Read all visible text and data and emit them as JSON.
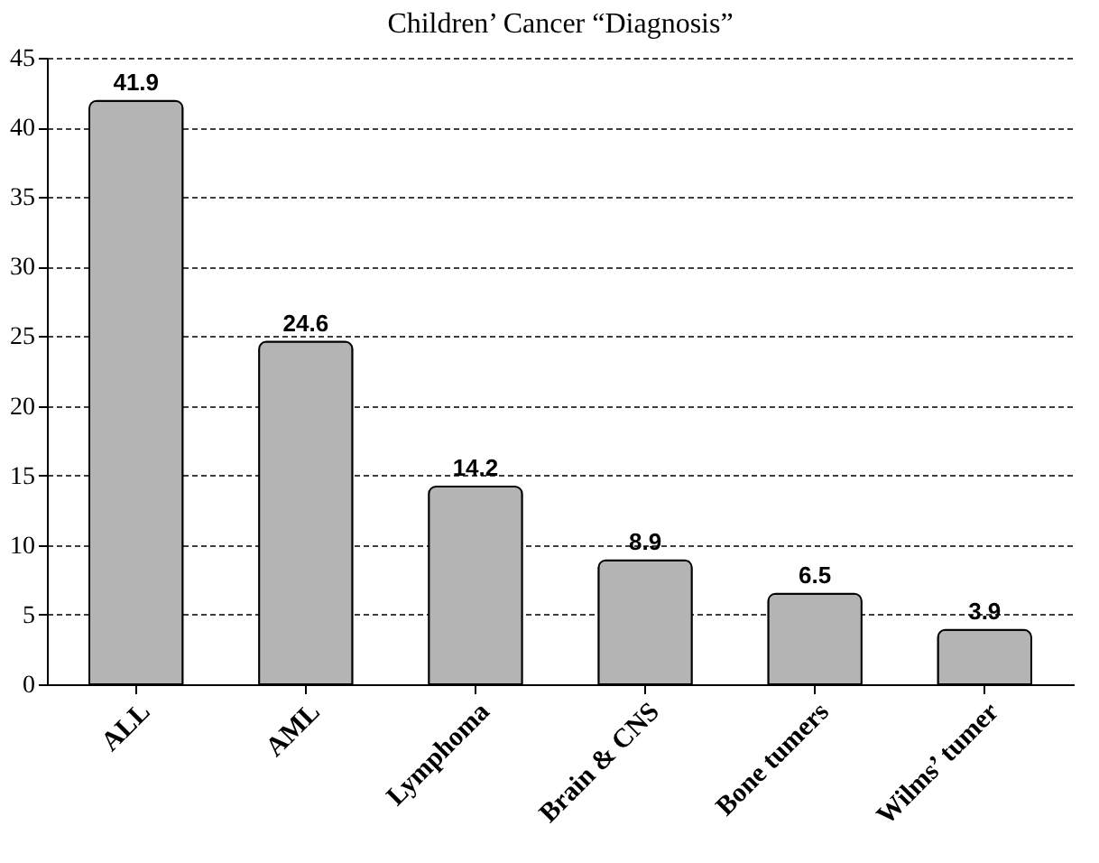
{
  "chart_data": {
    "type": "bar",
    "title": "Children’ Cancer “Diagnosis”",
    "categories": [
      "ALL",
      "AML",
      "Lymphoma",
      "Brain & CNS",
      "Bone tumers",
      "Wilms’ tumer"
    ],
    "values": [
      41.9,
      24.6,
      14.2,
      8.9,
      6.5,
      3.9
    ],
    "color": "#b4b4b4",
    "ylim": [
      0,
      45
    ],
    "yticks": [
      0,
      5,
      10,
      15,
      20,
      25,
      30,
      35,
      40,
      45
    ],
    "grid": "y",
    "data_labels": true
  }
}
